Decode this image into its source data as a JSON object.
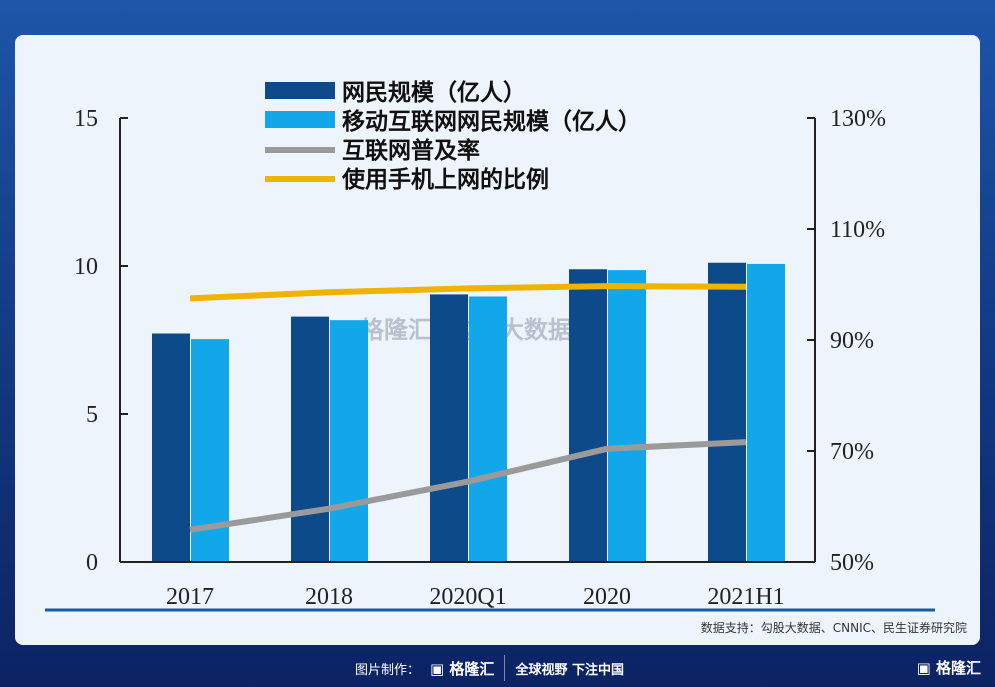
{
  "chart_data": {
    "type": "bar+line",
    "categories": [
      "2017",
      "2018",
      "2020Q1",
      "2020",
      "2021H1"
    ],
    "left_axis": {
      "ylim": [
        0,
        15
      ],
      "ticks": [
        "0",
        "5",
        "10",
        "15"
      ]
    },
    "right_axis": {
      "ylim": [
        50,
        130
      ],
      "ticks": [
        "50%",
        "70%",
        "90%",
        "110%",
        "130%"
      ]
    },
    "series": [
      {
        "name": "网民规模（亿人）",
        "kind": "bar",
        "axis": "left",
        "color": "#0d4a8a",
        "values": [
          7.72,
          8.29,
          9.04,
          9.89,
          10.11
        ]
      },
      {
        "name": "移动互联网网民规模（亿人）",
        "kind": "bar",
        "axis": "left",
        "color": "#12a7e9",
        "values": [
          7.53,
          8.17,
          8.97,
          9.86,
          10.07
        ]
      },
      {
        "name": "互联网普及率",
        "kind": "line",
        "axis": "right",
        "color": "#9a9a9a",
        "values": [
          55.8,
          59.6,
          64.5,
          70.4,
          71.6
        ]
      },
      {
        "name": "使用手机上网的比例",
        "kind": "line",
        "axis": "right",
        "color": "#f0b400",
        "values": [
          97.5,
          98.6,
          99.3,
          99.7,
          99.6
        ]
      }
    ],
    "legend": "top-left",
    "grid": false
  },
  "source": "数据支持：勾股大数据、CNNIC、民生证券研究院",
  "footer": {
    "made_by": "图片制作：",
    "brand": "格隆汇",
    "slogan": "全球视野 下注中国"
  },
  "watermark": {
    "left": "格隆汇",
    "right": "勾股大数据"
  }
}
